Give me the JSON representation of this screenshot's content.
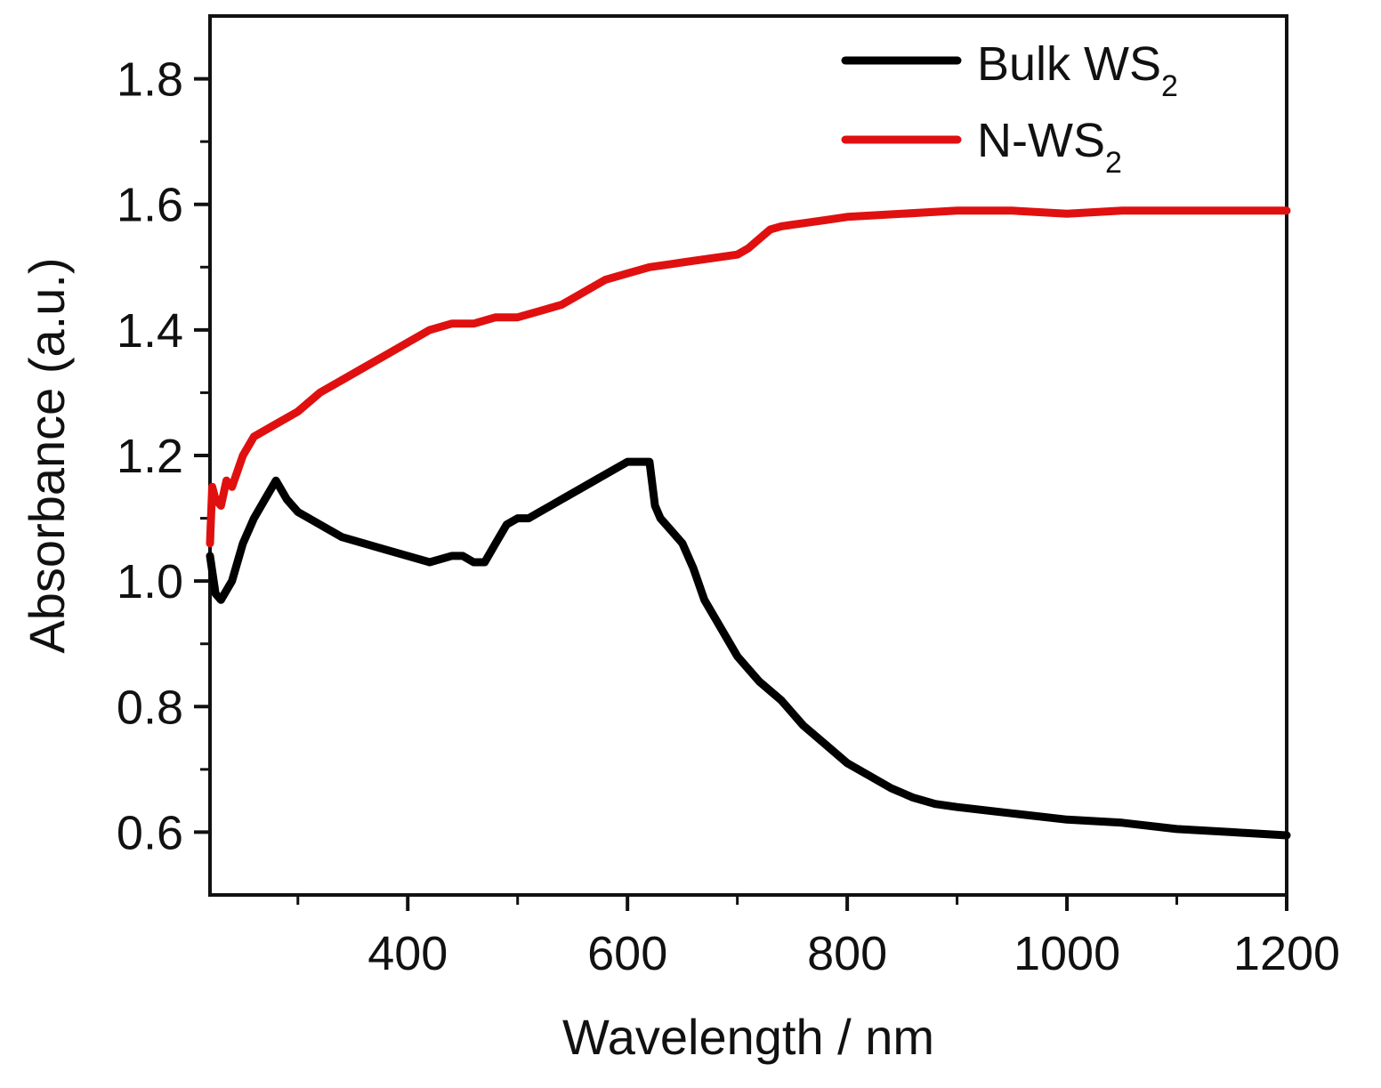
{
  "chart_data": {
    "type": "line",
    "title": "",
    "xlabel": "Wavelength / nm",
    "ylabel": "Absorbance (a.u.)",
    "xlim": [
      220,
      1200
    ],
    "ylim": [
      0.5,
      1.9
    ],
    "x_ticks": [
      400,
      600,
      800,
      1000,
      1200
    ],
    "x_tick_labels": [
      "400",
      "600",
      "800",
      "1000",
      "1200"
    ],
    "x_minor_ticks": [
      300,
      500,
      700,
      900,
      1100
    ],
    "y_ticks": [
      0.6,
      0.8,
      1.0,
      1.2,
      1.4,
      1.6,
      1.8
    ],
    "y_tick_labels": [
      "0.6",
      "0.8",
      "1.0",
      "1.2",
      "1.4",
      "1.6",
      "1.8"
    ],
    "y_minor_ticks": [
      0.7,
      0.9,
      1.1,
      1.3,
      1.5,
      1.7
    ],
    "grid": false,
    "legend_position": "top-right",
    "series": [
      {
        "name": "Bulk WS",
        "name_subscript": "2",
        "color": "#000000",
        "x": [
          220,
          225,
          230,
          240,
          250,
          260,
          270,
          280,
          290,
          300,
          320,
          340,
          360,
          380,
          400,
          420,
          440,
          450,
          460,
          470,
          480,
          490,
          500,
          510,
          520,
          530,
          540,
          560,
          580,
          600,
          610,
          620,
          625,
          630,
          640,
          650,
          660,
          670,
          680,
          700,
          720,
          740,
          760,
          780,
          800,
          820,
          840,
          860,
          880,
          900,
          950,
          1000,
          1050,
          1100,
          1150,
          1200
        ],
        "y": [
          1.04,
          0.98,
          0.97,
          1.0,
          1.06,
          1.1,
          1.13,
          1.16,
          1.13,
          1.11,
          1.09,
          1.07,
          1.06,
          1.05,
          1.04,
          1.03,
          1.04,
          1.04,
          1.03,
          1.03,
          1.06,
          1.09,
          1.1,
          1.1,
          1.11,
          1.12,
          1.13,
          1.15,
          1.17,
          1.19,
          1.19,
          1.19,
          1.12,
          1.1,
          1.08,
          1.06,
          1.02,
          0.97,
          0.94,
          0.88,
          0.84,
          0.81,
          0.77,
          0.74,
          0.71,
          0.69,
          0.67,
          0.655,
          0.645,
          0.64,
          0.63,
          0.62,
          0.615,
          0.605,
          0.6,
          0.595
        ]
      },
      {
        "name": "N-WS",
        "name_subscript": "2",
        "color": "#e01010",
        "x": [
          220,
          222,
          225,
          230,
          235,
          240,
          250,
          260,
          280,
          300,
          320,
          340,
          360,
          380,
          400,
          420,
          440,
          460,
          480,
          500,
          520,
          540,
          560,
          580,
          600,
          620,
          640,
          660,
          680,
          700,
          710,
          720,
          730,
          740,
          760,
          780,
          800,
          850,
          900,
          950,
          1000,
          1050,
          1100,
          1150,
          1200
        ],
        "y": [
          1.06,
          1.15,
          1.13,
          1.12,
          1.16,
          1.15,
          1.2,
          1.23,
          1.25,
          1.27,
          1.3,
          1.32,
          1.34,
          1.36,
          1.38,
          1.4,
          1.41,
          1.41,
          1.42,
          1.42,
          1.43,
          1.44,
          1.46,
          1.48,
          1.49,
          1.5,
          1.505,
          1.51,
          1.515,
          1.52,
          1.53,
          1.545,
          1.56,
          1.565,
          1.57,
          1.575,
          1.58,
          1.585,
          1.59,
          1.59,
          1.585,
          1.59,
          1.59,
          1.59,
          1.59
        ]
      }
    ]
  }
}
